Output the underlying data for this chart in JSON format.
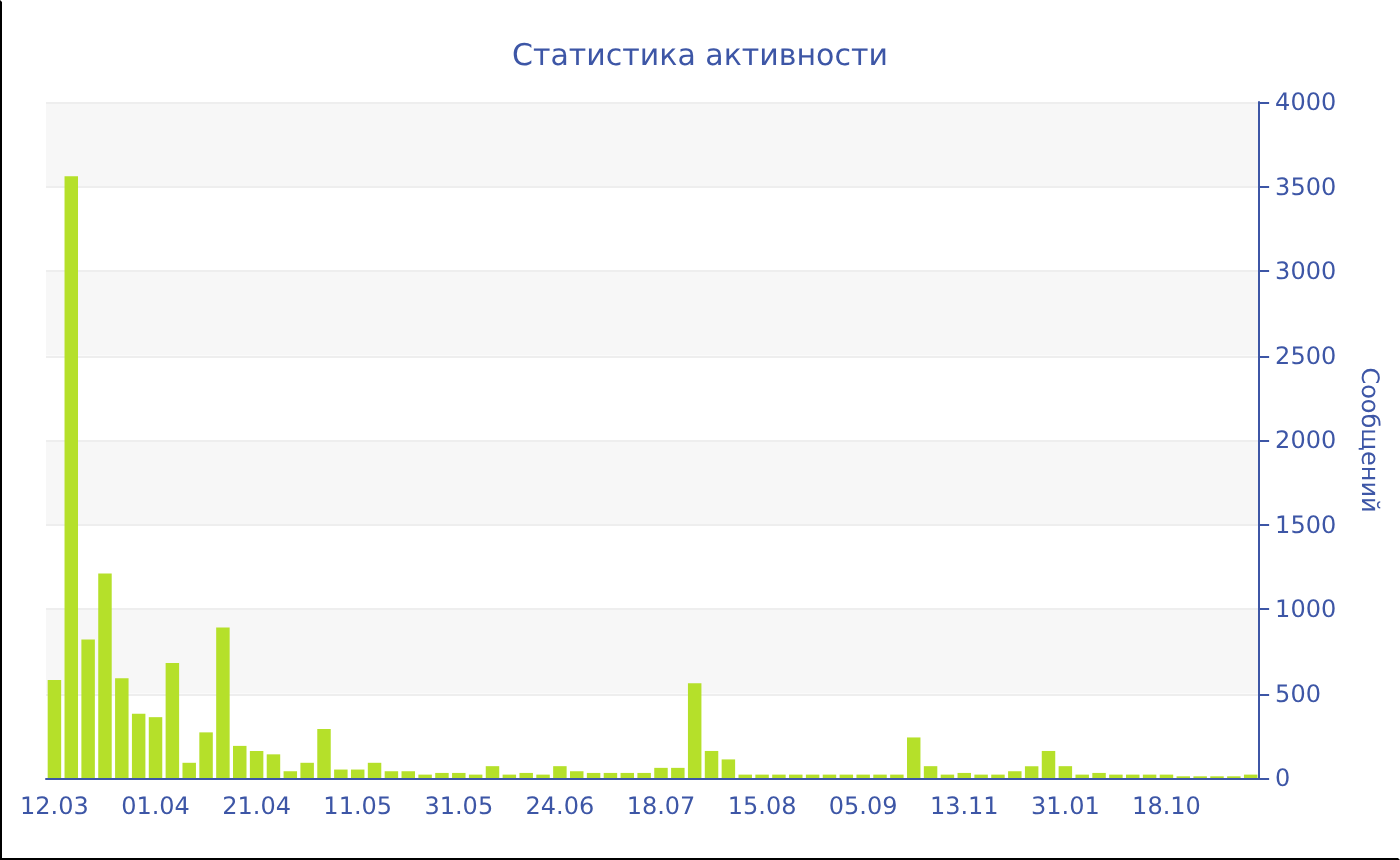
{
  "chart_data": {
    "type": "bar",
    "title": "Статистика активности",
    "ylabel": "Сообщений",
    "categories": [
      "12.03",
      null,
      null,
      null,
      null,
      null,
      "01.04",
      null,
      null,
      null,
      null,
      null,
      "21.04",
      null,
      null,
      null,
      null,
      null,
      "11.05",
      null,
      null,
      null,
      null,
      null,
      "31.05",
      null,
      null,
      null,
      null,
      null,
      "24.06",
      null,
      null,
      null,
      null,
      null,
      "18.07",
      null,
      null,
      null,
      null,
      null,
      "15.08",
      null,
      null,
      null,
      null,
      null,
      "05.09",
      null,
      null,
      null,
      null,
      null,
      "13.11",
      null,
      null,
      null,
      null,
      null,
      "31.01",
      null,
      null,
      null,
      null,
      null,
      "18.10",
      null,
      null,
      null,
      null,
      null
    ],
    "values": [
      580,
      3560,
      820,
      1210,
      590,
      380,
      360,
      680,
      90,
      270,
      890,
      190,
      160,
      140,
      40,
      90,
      290,
      50,
      50,
      90,
      40,
      40,
      20,
      30,
      30,
      20,
      70,
      20,
      30,
      20,
      70,
      40,
      30,
      30,
      30,
      30,
      60,
      60,
      560,
      160,
      110,
      20,
      20,
      20,
      20,
      20,
      20,
      20,
      20,
      20,
      20,
      240,
      70,
      20,
      30,
      20,
      20,
      40,
      70,
      160,
      70,
      20,
      30,
      20,
      20,
      20,
      20,
      10,
      10,
      10,
      10,
      20
    ],
    "color": "#b5e02a",
    "ylim": [
      0,
      4000
    ],
    "yticks": [
      0,
      500,
      1000,
      1500,
      2000,
      2500,
      3000,
      3500,
      4000
    ],
    "grid": "y"
  }
}
